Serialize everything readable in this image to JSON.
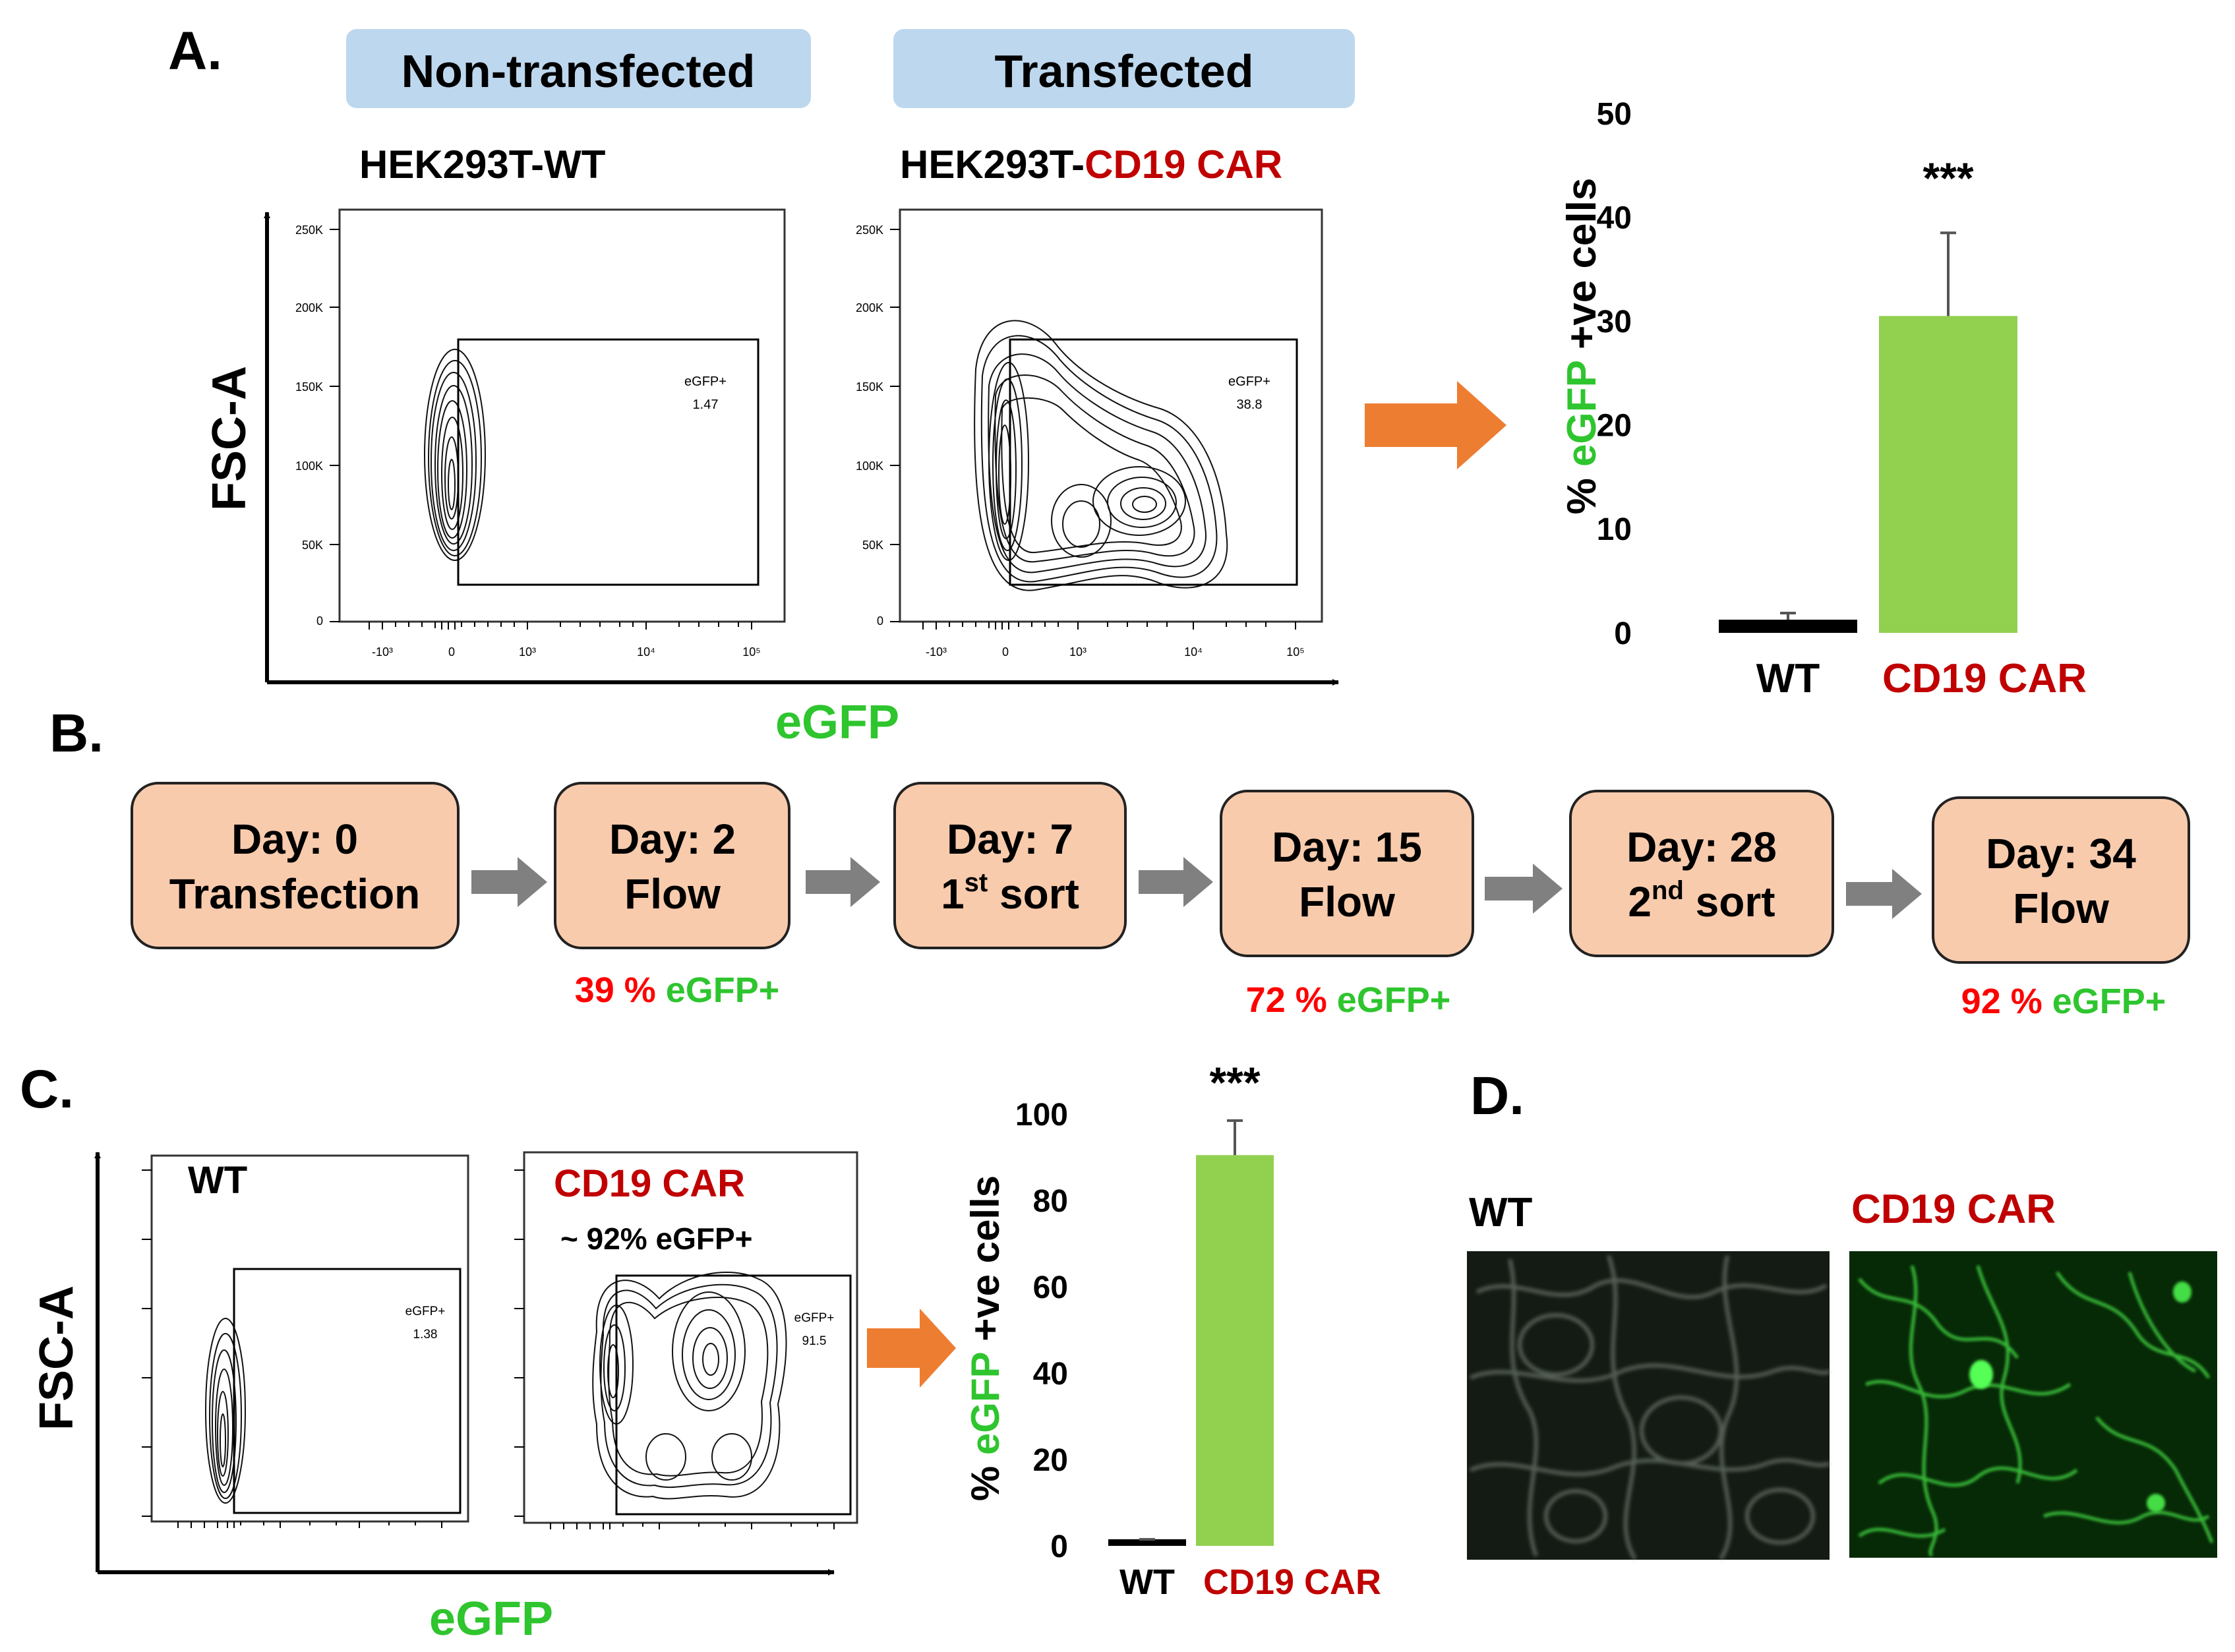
{
  "panel_a": {
    "label": "A.",
    "banner_left": "Non-transfected",
    "banner_right": "Transfected",
    "title_wt": "HEK293T-WT",
    "title_car_prefix": "HEK293T-",
    "title_car_suffix": "CD19 CAR",
    "y_axis_label": "FSC-A",
    "x_axis_label": "eGFP",
    "flow_y_ticks": [
      "250K",
      "200K",
      "150K",
      "100K",
      "50K",
      "0"
    ],
    "flow_x_ticks": [
      "-10³",
      "0",
      "10³",
      "10⁴",
      "10⁵"
    ],
    "gate_label": "eGFP+",
    "gate_value_wt": "1.47",
    "gate_value_car": "38.8"
  },
  "panel_b": {
    "label": "B.",
    "steps": [
      {
        "line1": "Day: 0",
        "line2": "Transfection"
      },
      {
        "line1": "Day: 2",
        "line2": "Flow"
      },
      {
        "line1": "Day: 7",
        "line2_num": "1",
        "line2_sup": "st",
        "line2_rest": " sort"
      },
      {
        "line1": "Day: 15",
        "line2": "Flow"
      },
      {
        "line1": "Day: 28",
        "line2_num": "2",
        "line2_sup": "nd",
        "line2_rest": " sort"
      },
      {
        "line1": "Day: 34",
        "line2": "Flow"
      }
    ],
    "results": [
      {
        "pct": "39 %",
        "label": "eGFP+"
      },
      {
        "pct": "72 %",
        "label": "eGFP+"
      },
      {
        "pct": "92 %",
        "label": "eGFP+"
      }
    ]
  },
  "panel_c": {
    "label": "C.",
    "plot_wt_title": "WT",
    "plot_car_title": "CD19 CAR",
    "plot_car_subtitle": "~ 92% eGFP+",
    "y_axis_label": "FSC-A",
    "x_axis_label": "eGFP",
    "gate_label": "eGFP+",
    "gate_value_wt": "1.38",
    "gate_value_car": "91.5"
  },
  "panel_d": {
    "label": "D.",
    "img_wt_label": "WT",
    "img_car_label": "CD19 CAR"
  },
  "colors": {
    "banner": "#bdd7ee",
    "step_fill": "#f8cbad",
    "arrow_orange": "#ed7d31",
    "arrow_grey": "#808080",
    "bar_green": "#92d050",
    "text_red": "#c00000",
    "pct_red": "#ff0000",
    "text_green": "#2ec52e"
  },
  "chart_data": [
    {
      "type": "bar",
      "panel": "A",
      "categories": [
        "WT",
        "CD19 CAR"
      ],
      "values": [
        1.2,
        30.5
      ],
      "errors": [
        0.7,
        8.0
      ],
      "ylim": [
        0,
        50
      ],
      "yticks": [
        "0",
        "10",
        "20",
        "30",
        "40",
        "50"
      ],
      "ylabel_parts": [
        "% ",
        "eGFP",
        " +ve cells"
      ],
      "significance": "***",
      "title": "",
      "xlabel": ""
    },
    {
      "type": "bar",
      "panel": "C",
      "categories": [
        "WT",
        "CD19 CAR"
      ],
      "values": [
        1.0,
        90.5
      ],
      "errors": [
        0.5,
        8.0
      ],
      "ylim": [
        0,
        100
      ],
      "yticks": [
        "0",
        "20",
        "40",
        "60",
        "80",
        "100"
      ],
      "ylabel_parts": [
        "% ",
        "eGFP",
        " +ve cells"
      ],
      "significance": "***",
      "title": "",
      "xlabel": ""
    }
  ]
}
